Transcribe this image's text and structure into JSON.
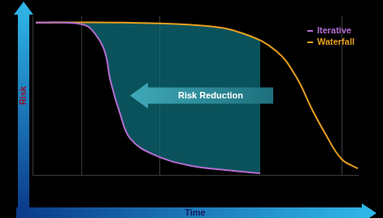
{
  "chart_data": {
    "type": "line",
    "xlabel": "Time",
    "ylabel": "Risk",
    "annotations": [
      "Risk Reduction"
    ],
    "series": [
      {
        "name": "Iterative",
        "color": "#b46ed2",
        "x": [
          1,
          10,
          15,
          18,
          22,
          24,
          27,
          30,
          37,
          48,
          60,
          70
        ],
        "values": [
          96,
          96,
          95,
          92,
          79,
          59,
          38,
          23,
          13,
          6,
          3,
          1
        ]
      },
      {
        "name": "Waterfall",
        "color": "#e8a020",
        "x": [
          1,
          28,
          53,
          65,
          75,
          81,
          86,
          90,
          95,
          100
        ],
        "values": [
          96,
          96,
          94,
          89,
          78,
          62,
          41,
          26,
          10,
          4
        ]
      }
    ],
    "xlim": [
      0,
      100
    ],
    "ylim": [
      0,
      100
    ],
    "xticks": [
      15,
      39,
      95
    ],
    "grid": true,
    "legend": "upper right",
    "tick_labels": false
  }
}
